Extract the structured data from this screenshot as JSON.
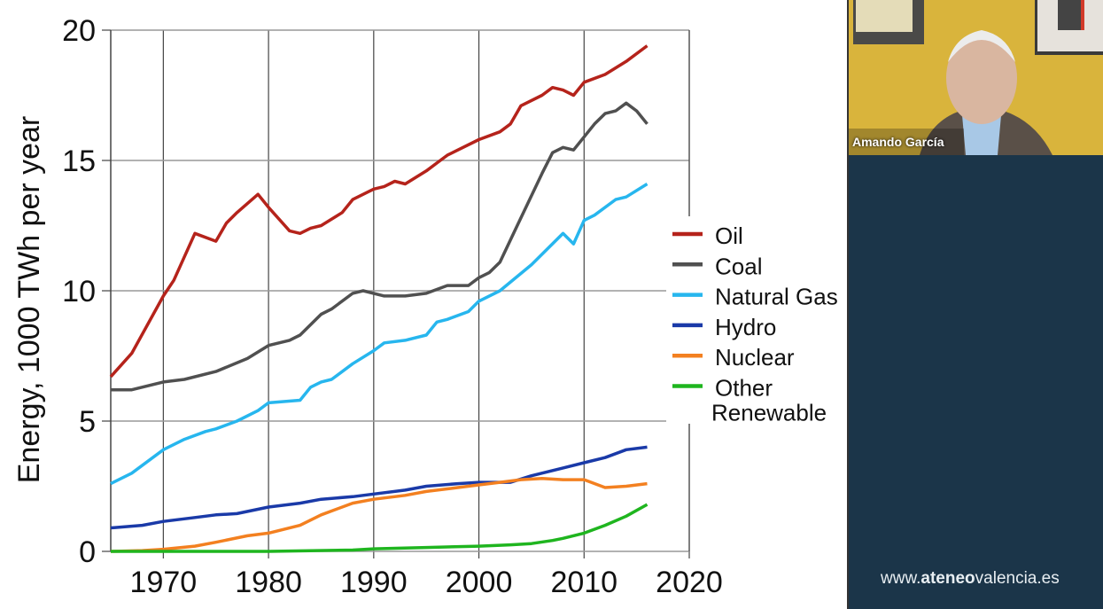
{
  "chart_data": {
    "type": "line",
    "ylabel": "Energy, 1000 TWh per year",
    "xlim": [
      1965,
      2020
    ],
    "ylim": [
      0,
      20
    ],
    "xticks": [
      1970,
      1980,
      1990,
      2000,
      2010,
      2020
    ],
    "yticks": [
      0,
      5,
      10,
      15,
      20
    ],
    "grid": true,
    "legend_position": "right",
    "series": [
      {
        "name": "Oil",
        "color": "#b5231b",
        "points": [
          [
            1965,
            6.7
          ],
          [
            1967,
            7.6
          ],
          [
            1970,
            9.8
          ],
          [
            1971,
            10.4
          ],
          [
            1973,
            12.2
          ],
          [
            1975,
            11.9
          ],
          [
            1976,
            12.6
          ],
          [
            1977,
            13.0
          ],
          [
            1979,
            13.7
          ],
          [
            1980,
            13.2
          ],
          [
            1982,
            12.3
          ],
          [
            1983,
            12.2
          ],
          [
            1984,
            12.4
          ],
          [
            1985,
            12.5
          ],
          [
            1987,
            13.0
          ],
          [
            1988,
            13.5
          ],
          [
            1990,
            13.9
          ],
          [
            1991,
            14.0
          ],
          [
            1992,
            14.2
          ],
          [
            1993,
            14.1
          ],
          [
            1995,
            14.6
          ],
          [
            1996,
            14.9
          ],
          [
            1997,
            15.2
          ],
          [
            1998,
            15.4
          ],
          [
            2000,
            15.8
          ],
          [
            2002,
            16.1
          ],
          [
            2003,
            16.4
          ],
          [
            2004,
            17.1
          ],
          [
            2006,
            17.5
          ],
          [
            2007,
            17.8
          ],
          [
            2008,
            17.7
          ],
          [
            2009,
            17.5
          ],
          [
            2010,
            18.0
          ],
          [
            2012,
            18.3
          ],
          [
            2014,
            18.8
          ],
          [
            2016,
            19.4
          ]
        ]
      },
      {
        "name": "Coal",
        "color": "#505050",
        "points": [
          [
            1965,
            6.2
          ],
          [
            1967,
            6.2
          ],
          [
            1970,
            6.5
          ],
          [
            1972,
            6.6
          ],
          [
            1975,
            6.9
          ],
          [
            1978,
            7.4
          ],
          [
            1980,
            7.9
          ],
          [
            1982,
            8.1
          ],
          [
            1983,
            8.3
          ],
          [
            1985,
            9.1
          ],
          [
            1986,
            9.3
          ],
          [
            1988,
            9.9
          ],
          [
            1989,
            10.0
          ],
          [
            1991,
            9.8
          ],
          [
            1993,
            9.8
          ],
          [
            1995,
            9.9
          ],
          [
            1997,
            10.2
          ],
          [
            1999,
            10.2
          ],
          [
            2000,
            10.5
          ],
          [
            2001,
            10.7
          ],
          [
            2002,
            11.1
          ],
          [
            2004,
            12.8
          ],
          [
            2006,
            14.5
          ],
          [
            2007,
            15.3
          ],
          [
            2008,
            15.5
          ],
          [
            2009,
            15.4
          ],
          [
            2011,
            16.4
          ],
          [
            2012,
            16.8
          ],
          [
            2013,
            16.9
          ],
          [
            2014,
            17.2
          ],
          [
            2015,
            16.9
          ],
          [
            2016,
            16.4
          ]
        ]
      },
      {
        "name": "Natural Gas",
        "color": "#27b6ee",
        "points": [
          [
            1965,
            2.6
          ],
          [
            1967,
            3.0
          ],
          [
            1970,
            3.9
          ],
          [
            1972,
            4.3
          ],
          [
            1974,
            4.6
          ],
          [
            1975,
            4.7
          ],
          [
            1977,
            5.0
          ],
          [
            1979,
            5.4
          ],
          [
            1980,
            5.7
          ],
          [
            1983,
            5.8
          ],
          [
            1984,
            6.3
          ],
          [
            1985,
            6.5
          ],
          [
            1986,
            6.6
          ],
          [
            1988,
            7.2
          ],
          [
            1990,
            7.7
          ],
          [
            1991,
            8.0
          ],
          [
            1993,
            8.1
          ],
          [
            1995,
            8.3
          ],
          [
            1996,
            8.8
          ],
          [
            1997,
            8.9
          ],
          [
            1999,
            9.2
          ],
          [
            2000,
            9.6
          ],
          [
            2002,
            10.0
          ],
          [
            2005,
            11.0
          ],
          [
            2008,
            12.2
          ],
          [
            2009,
            11.8
          ],
          [
            2010,
            12.7
          ],
          [
            2011,
            12.9
          ],
          [
            2013,
            13.5
          ],
          [
            2014,
            13.6
          ],
          [
            2016,
            14.1
          ]
        ]
      },
      {
        "name": "Hydro",
        "color": "#1a3aa8",
        "points": [
          [
            1965,
            0.9
          ],
          [
            1968,
            1.0
          ],
          [
            1970,
            1.15
          ],
          [
            1973,
            1.3
          ],
          [
            1975,
            1.4
          ],
          [
            1977,
            1.45
          ],
          [
            1980,
            1.7
          ],
          [
            1983,
            1.85
          ],
          [
            1985,
            2.0
          ],
          [
            1988,
            2.1
          ],
          [
            1990,
            2.2
          ],
          [
            1993,
            2.35
          ],
          [
            1995,
            2.5
          ],
          [
            1998,
            2.6
          ],
          [
            2000,
            2.65
          ],
          [
            2003,
            2.65
          ],
          [
            2005,
            2.9
          ],
          [
            2008,
            3.2
          ],
          [
            2010,
            3.4
          ],
          [
            2012,
            3.6
          ],
          [
            2014,
            3.9
          ],
          [
            2016,
            4.0
          ]
        ]
      },
      {
        "name": "Nuclear",
        "color": "#f38020",
        "points": [
          [
            1965,
            0.0
          ],
          [
            1968,
            0.03
          ],
          [
            1970,
            0.08
          ],
          [
            1973,
            0.2
          ],
          [
            1975,
            0.35
          ],
          [
            1978,
            0.6
          ],
          [
            1980,
            0.7
          ],
          [
            1983,
            1.0
          ],
          [
            1985,
            1.4
          ],
          [
            1988,
            1.85
          ],
          [
            1990,
            2.0
          ],
          [
            1993,
            2.15
          ],
          [
            1995,
            2.3
          ],
          [
            1998,
            2.45
          ],
          [
            2000,
            2.55
          ],
          [
            2002,
            2.65
          ],
          [
            2004,
            2.75
          ],
          [
            2006,
            2.8
          ],
          [
            2008,
            2.75
          ],
          [
            2010,
            2.75
          ],
          [
            2012,
            2.45
          ],
          [
            2014,
            2.5
          ],
          [
            2016,
            2.6
          ]
        ]
      },
      {
        "name": "Other Renewable",
        "legend_lines": [
          "Other",
          "Renewable"
        ],
        "color": "#1fb51f",
        "points": [
          [
            1965,
            0.0
          ],
          [
            1980,
            0.0
          ],
          [
            1988,
            0.05
          ],
          [
            1990,
            0.1
          ],
          [
            1995,
            0.15
          ],
          [
            2000,
            0.2
          ],
          [
            2003,
            0.25
          ],
          [
            2005,
            0.3
          ],
          [
            2007,
            0.42
          ],
          [
            2008,
            0.5
          ],
          [
            2010,
            0.7
          ],
          [
            2012,
            1.0
          ],
          [
            2014,
            1.35
          ],
          [
            2016,
            1.8
          ]
        ]
      }
    ]
  },
  "video": {
    "participant_name": "Amando García"
  },
  "footer": {
    "url_prefix": "www.",
    "url_bold": "ateneo",
    "url_suffix": "valencia.es"
  }
}
